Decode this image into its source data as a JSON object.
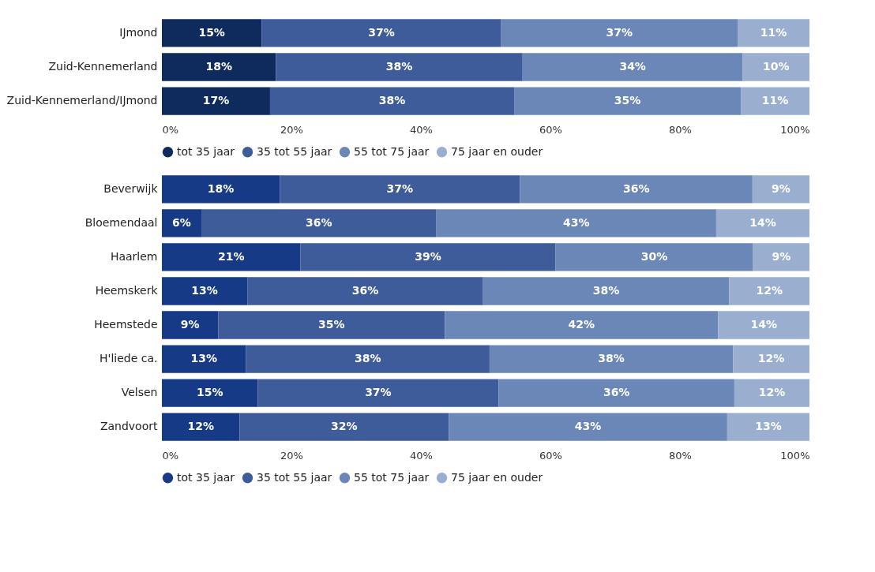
{
  "chart_data": [
    {
      "type": "bar",
      "orientation": "horizontal",
      "stacked": true,
      "categories": [
        "IJmond",
        "Zuid-Kennemerland",
        "Zuid-Kennemerland/IJmond"
      ],
      "xlim": [
        0,
        100
      ],
      "xticks": [
        {
          "value": 0,
          "label": "0%"
        },
        {
          "value": 20,
          "label": "20%"
        },
        {
          "value": 40,
          "label": "40%"
        },
        {
          "value": 60,
          "label": "60%"
        },
        {
          "value": 80,
          "label": "80%"
        },
        {
          "value": 100,
          "label": "100%"
        }
      ],
      "legend": "bottom",
      "series": [
        {
          "name": "tot 35 jaar",
          "color": "#0f2a5c",
          "values": [
            15.4,
            17.6,
            16.7
          ],
          "value_labels": [
            "15%",
            "18%",
            "17%"
          ]
        },
        {
          "name": "35 tot 55 jaar",
          "color": "#3e5c9a",
          "values": [
            37.0,
            38.1,
            37.7
          ],
          "value_labels": [
            "37%",
            "38%",
            "38%"
          ]
        },
        {
          "name": "55 tot 75 jaar",
          "color": "#6a87b8",
          "values": [
            36.5,
            34.0,
            35.0
          ],
          "value_labels": [
            "37%",
            "34%",
            "35%"
          ]
        },
        {
          "name": "75 jaar en ouder",
          "color": "#9aafd0",
          "values": [
            11.1,
            10.3,
            10.6
          ],
          "value_labels": [
            "11%",
            "10%",
            "11%"
          ]
        }
      ]
    },
    {
      "type": "bar",
      "orientation": "horizontal",
      "stacked": true,
      "categories": [
        "Beverwijk",
        "Bloemendaal",
        "Haarlem",
        "Heemskerk",
        "Heemstede",
        "H'liede ca.",
        "Velsen",
        "Zandvoort"
      ],
      "xlim": [
        0,
        100
      ],
      "xticks": [
        {
          "value": 0,
          "label": "0%"
        },
        {
          "value": 20,
          "label": "20%"
        },
        {
          "value": 40,
          "label": "40%"
        },
        {
          "value": 60,
          "label": "60%"
        },
        {
          "value": 80,
          "label": "80%"
        },
        {
          "value": 100,
          "label": "100%"
        }
      ],
      "legend": "bottom",
      "series": [
        {
          "name": "tot 35 jaar",
          "color": "#163a86",
          "values": [
            18.2,
            6.1,
            21.4,
            13.2,
            8.7,
            13.0,
            14.8,
            12.0
          ],
          "value_labels": [
            "18%",
            "6%",
            "21%",
            "13%",
            "9%",
            "13%",
            "15%",
            "12%"
          ]
        },
        {
          "name": "35 tot 55 jaar",
          "color": "#3e5c9a",
          "values": [
            37.1,
            36.3,
            39.4,
            36.4,
            35.0,
            37.6,
            37.2,
            32.3
          ],
          "value_labels": [
            "37%",
            "36%",
            "39%",
            "36%",
            "35%",
            "38%",
            "37%",
            "32%"
          ]
        },
        {
          "name": "55 tot 75 jaar",
          "color": "#6a87b8",
          "values": [
            35.9,
            43.2,
            30.5,
            38.0,
            42.2,
            37.6,
            36.4,
            43.0
          ],
          "value_labels": [
            "36%",
            "43%",
            "30%",
            "38%",
            "42%",
            "38%",
            "36%",
            "43%"
          ]
        },
        {
          "name": "75 jaar en ouder",
          "color": "#9aafd0",
          "values": [
            8.8,
            14.4,
            8.7,
            12.4,
            14.1,
            11.8,
            11.6,
            12.7
          ],
          "value_labels": [
            "9%",
            "14%",
            "9%",
            "12%",
            "14%",
            "12%",
            "12%",
            "13%"
          ]
        }
      ]
    }
  ]
}
